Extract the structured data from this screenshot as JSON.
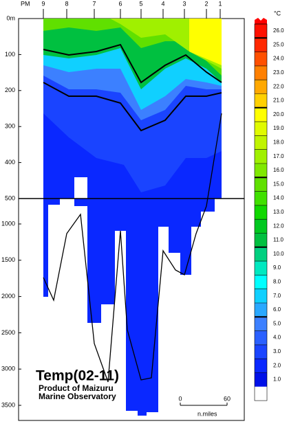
{
  "chart_data": {
    "type": "section",
    "title": "Temp(02-11)",
    "subtitle": [
      "Product of Maizuru",
      "Marine Observatory"
    ],
    "x_label": "PM",
    "stations": [
      "9",
      "8",
      "7",
      "6",
      "5",
      "4",
      "3",
      "2",
      "1"
    ],
    "upper_yticks": [
      {
        "value": 0,
        "label": "0m"
      },
      100,
      200,
      300,
      400,
      500
    ],
    "lower_yticks": [
      1000,
      1500,
      2000,
      2500,
      3000,
      3500
    ],
    "colorbar": {
      "unit": "°C",
      "levels": [
        1.0,
        2.0,
        3.0,
        4.0,
        5.0,
        6.0,
        7.0,
        8.0,
        9.0,
        10.0,
        11.0,
        12.0,
        13.0,
        14.0,
        15.0,
        16.0,
        17.0,
        18.0,
        19.0,
        20.0,
        21.0,
        22.0,
        23.0,
        24.0,
        25.0,
        26.0
      ],
      "level_labels": [
        "1.0",
        "2.0",
        "3.0",
        "4.0",
        "5.0",
        "6.0",
        "7.0",
        "8.0",
        "9.0",
        "10.0",
        "11.0",
        "12.0",
        "13.0",
        "14.0",
        "15.0",
        "16.0",
        "17.0",
        "18.0",
        "19.0",
        "20.0",
        "21.0",
        "22.0",
        "23.0",
        "24.0",
        "25.0",
        "26.0"
      ],
      "colors": [
        "#0010e8",
        "#0a28ff",
        "#1a44ff",
        "#2a60ff",
        "#3c80ff",
        "#2aa8ff",
        "#10d0ff",
        "#00ffff",
        "#00e8c0",
        "#00d080",
        "#00c040",
        "#00c820",
        "#10d800",
        "#40e000",
        "#60e000",
        "#80e800",
        "#a0f000",
        "#c0f400",
        "#e0fa00",
        "#ffff00",
        "#ffd000",
        "#ffa800",
        "#ff8000",
        "#ff5000",
        "#ff2800",
        "#ff1000",
        "#ff0000"
      ]
    },
    "scale_bar": {
      "ticks": [
        0,
        60
      ],
      "label": "n.miles"
    }
  }
}
